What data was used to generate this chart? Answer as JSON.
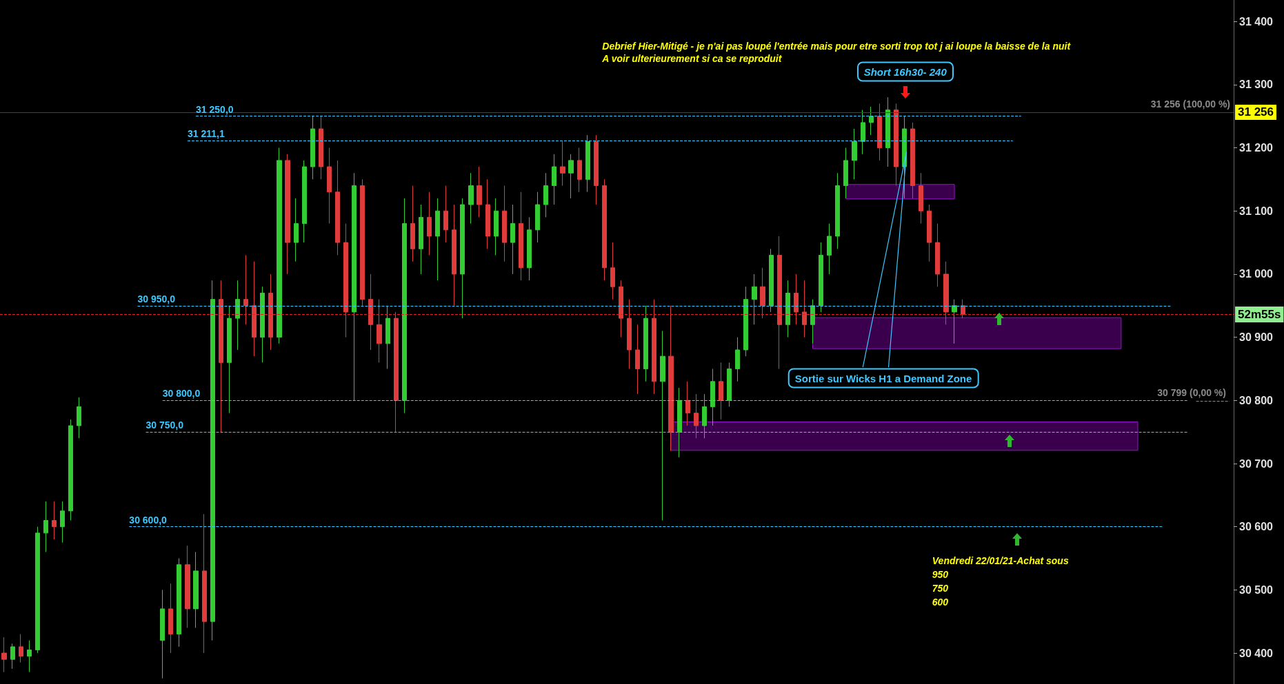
{
  "chart_data": {
    "type": "candlestick",
    "categories": [
      null,
      null,
      null,
      null,
      null,
      null,
      null,
      null,
      null,
      null,
      null,
      null,
      null,
      null,
      null,
      null,
      null,
      null,
      null,
      null,
      null,
      null,
      null,
      null,
      null,
      null,
      null,
      null,
      null,
      null,
      null,
      null,
      null,
      null,
      null,
      null,
      null,
      null,
      null,
      null,
      null,
      null,
      null,
      null,
      null,
      null,
      null,
      null,
      null,
      null,
      null,
      null,
      null,
      null,
      null,
      null,
      null,
      null,
      null,
      null,
      null,
      null,
      null,
      null,
      null,
      null,
      null,
      null,
      null,
      null,
      null,
      null,
      null,
      null,
      null,
      null,
      null,
      null,
      null,
      null,
      null,
      null,
      null,
      null,
      null,
      null,
      null,
      null,
      null,
      null,
      null,
      null,
      null,
      null,
      null,
      null,
      null,
      null,
      null,
      null,
      null,
      null,
      null,
      null,
      null,
      null,
      null,
      null,
      null,
      null,
      null,
      null,
      null,
      null,
      null,
      null,
      null,
      null,
      null,
      null,
      null,
      null,
      null,
      null,
      null,
      null,
      null,
      null,
      null,
      null,
      null,
      null,
      null,
      null,
      null,
      null,
      null,
      null,
      null,
      null,
      null,
      null,
      null,
      null,
      null,
      null,
      null,
      null
    ],
    "ohlc": [
      [
        30400,
        30425,
        30370,
        30390
      ],
      [
        30390,
        30415,
        30375,
        30410
      ],
      [
        30410,
        30430,
        30385,
        30395
      ],
      [
        30395,
        30420,
        30370,
        30405
      ],
      [
        30405,
        30600,
        30400,
        30590
      ],
      [
        30590,
        30640,
        30560,
        30610
      ],
      [
        30610,
        30640,
        30580,
        30600
      ],
      [
        30600,
        30640,
        30575,
        30625
      ],
      [
        30625,
        30770,
        30610,
        30760
      ],
      [
        30760,
        30805,
        30740,
        30790
      ],
      null,
      null,
      null,
      null,
      null,
      null,
      null,
      null,
      null,
      [
        30420,
        30500,
        30360,
        30470
      ],
      [
        30470,
        30510,
        30400,
        30430
      ],
      [
        30430,
        30550,
        30410,
        30540
      ],
      [
        30540,
        30570,
        30440,
        30470
      ],
      [
        30470,
        30560,
        30440,
        30530
      ],
      [
        30530,
        30620,
        30400,
        30450
      ],
      [
        30450,
        30990,
        30420,
        30960
      ],
      [
        30960,
        30990,
        30750,
        30860
      ],
      [
        30860,
        30950,
        30780,
        30930
      ],
      [
        30930,
        30990,
        30880,
        30960
      ],
      [
        30960,
        31030,
        30920,
        30950
      ],
      [
        30950,
        31020,
        30870,
        30900
      ],
      [
        30900,
        30980,
        30860,
        30970
      ],
      [
        30970,
        31000,
        30880,
        30900
      ],
      [
        30900,
        31200,
        30890,
        31180
      ],
      [
        31180,
        31190,
        31000,
        31050
      ],
      [
        31050,
        31120,
        31020,
        31080
      ],
      [
        31080,
        31180,
        31050,
        31170
      ],
      [
        31170,
        31250,
        31150,
        31230
      ],
      [
        31230,
        31250,
        31150,
        31170
      ],
      [
        31170,
        31200,
        31080,
        31130
      ],
      [
        31130,
        31180,
        31030,
        31050
      ],
      [
        31050,
        31080,
        30900,
        30940
      ],
      [
        30940,
        31160,
        30800,
        31140
      ],
      [
        31140,
        31150,
        30950,
        30960
      ],
      [
        30960,
        31000,
        30880,
        30920
      ],
      [
        30920,
        30960,
        30860,
        30890
      ],
      [
        30890,
        30950,
        30850,
        30930
      ],
      [
        30930,
        30940,
        30750,
        30800
      ],
      [
        30800,
        31120,
        30780,
        31080
      ],
      [
        31080,
        31140,
        31020,
        31040
      ],
      [
        31040,
        31110,
        31000,
        31090
      ],
      [
        31090,
        31130,
        31030,
        31060
      ],
      [
        31060,
        31120,
        30990,
        31100
      ],
      [
        31100,
        31140,
        31050,
        31070
      ],
      [
        31070,
        31110,
        30950,
        31000
      ],
      [
        31000,
        31120,
        30930,
        31110
      ],
      [
        31110,
        31160,
        31080,
        31140
      ],
      [
        31140,
        31170,
        31090,
        31110
      ],
      [
        31110,
        31150,
        31040,
        31060
      ],
      [
        31060,
        31120,
        31030,
        31100
      ],
      [
        31100,
        31140,
        31020,
        31050
      ],
      [
        31050,
        31110,
        31000,
        31080
      ],
      [
        31080,
        31130,
        30990,
        31010
      ],
      [
        31010,
        31090,
        30990,
        31070
      ],
      [
        31070,
        31130,
        31050,
        31110
      ],
      [
        31110,
        31160,
        31090,
        31140
      ],
      [
        31140,
        31190,
        31110,
        31170
      ],
      [
        31170,
        31210,
        31140,
        31160
      ],
      [
        31160,
        31190,
        31120,
        31180
      ],
      [
        31180,
        31200,
        31130,
        31150
      ],
      [
        31150,
        31220,
        31130,
        31210
      ],
      [
        31210,
        31220,
        31110,
        31140
      ],
      [
        31140,
        31150,
        30990,
        31010
      ],
      [
        31010,
        31050,
        30960,
        30980
      ],
      [
        30980,
        30990,
        30900,
        30930
      ],
      [
        30930,
        30960,
        30850,
        30880
      ],
      [
        30880,
        30920,
        30810,
        30850
      ],
      [
        30850,
        30950,
        30830,
        30930
      ],
      [
        30930,
        30960,
        30810,
        30830
      ],
      [
        30830,
        30910,
        30610,
        30870
      ],
      [
        30870,
        30950,
        30720,
        30750
      ],
      [
        30750,
        30820,
        30710,
        30800
      ],
      [
        30800,
        30830,
        30760,
        30780
      ],
      [
        30780,
        30810,
        30740,
        30760
      ],
      [
        30760,
        30810,
        30740,
        30790
      ],
      [
        30790,
        30850,
        30760,
        30830
      ],
      [
        30830,
        30860,
        30770,
        30800
      ],
      [
        30800,
        30860,
        30790,
        30850
      ],
      [
        30850,
        30900,
        30830,
        30880
      ],
      [
        30880,
        30980,
        30870,
        30960
      ],
      [
        30960,
        31000,
        30920,
        30980
      ],
      [
        30980,
        31010,
        30930,
        30950
      ],
      [
        30950,
        31040,
        30940,
        31030
      ],
      [
        31030,
        31060,
        30850,
        30920
      ],
      [
        30920,
        30990,
        30900,
        30970
      ],
      [
        30970,
        31000,
        30920,
        30940
      ],
      [
        30940,
        30990,
        30900,
        30920
      ],
      [
        30920,
        30960,
        30890,
        30950
      ],
      [
        30950,
        31050,
        30940,
        31030
      ],
      [
        31030,
        31080,
        31000,
        31060
      ],
      [
        31060,
        31160,
        31040,
        31140
      ],
      [
        31140,
        31200,
        31120,
        31180
      ],
      [
        31180,
        31230,
        31150,
        31210
      ],
      [
        31210,
        31260,
        31190,
        31240
      ],
      [
        31240,
        31265,
        31220,
        31250
      ],
      [
        31250,
        31270,
        31180,
        31200
      ],
      [
        31200,
        31280,
        31170,
        31260
      ],
      [
        31260,
        31270,
        31140,
        31170
      ],
      [
        31170,
        31250,
        31120,
        31230
      ],
      [
        31230,
        31240,
        31120,
        31140
      ],
      [
        31140,
        31160,
        31080,
        31100
      ],
      [
        31100,
        31110,
        31020,
        31050
      ],
      [
        31050,
        31080,
        30980,
        31000
      ],
      [
        31000,
        31020,
        30920,
        30940
      ],
      [
        30940,
        30960,
        30890,
        30950
      ],
      [
        30950,
        30960,
        30930,
        30936
      ],
      null,
      null,
      null,
      null,
      null,
      null,
      null,
      null,
      null,
      null,
      null,
      null,
      null,
      null,
      null,
      null,
      null,
      null,
      null,
      null,
      null,
      null,
      null,
      null,
      null,
      null,
      null,
      null,
      null,
      null,
      null,
      null
    ],
    "ylim": [
      30351,
      31434
    ],
    "yticks": [
      {
        "value": 30400,
        "label": "30 400"
      },
      {
        "value": 30500,
        "label": "30 500"
      },
      {
        "value": 30600,
        "label": "30 600"
      },
      {
        "value": 30700,
        "label": "30 700"
      },
      {
        "value": 30800,
        "label": "30 800"
      },
      {
        "value": 30900,
        "label": "30 900"
      },
      {
        "value": 31000,
        "label": "31 000"
      },
      {
        "value": 31100,
        "label": "31 100"
      },
      {
        "value": 31200,
        "label": "31 200"
      },
      {
        "value": 31300,
        "label": "31 300"
      },
      {
        "value": 31400,
        "label": "31 400"
      }
    ],
    "tick_labels": "y",
    "ref_lines": [
      {
        "axis": "y",
        "value": 31250,
        "label": "31 250,0",
        "color": "#3ec8ff",
        "line_style": "dashed"
      },
      {
        "axis": "y",
        "value": 31211.1,
        "label": "31 211,1",
        "color": "#3ec8ff",
        "line_style": "dashed"
      },
      {
        "axis": "y",
        "value": 30950,
        "label": "30 950,0",
        "color": "#3ec8ff",
        "line_style": "dashed"
      },
      {
        "axis": "y",
        "value": 30800,
        "label": "30 800,0",
        "color": "#3ec8ff",
        "line_style": "dashed"
      },
      {
        "axis": "y",
        "value": 30750,
        "label": "30 750,0",
        "color": "#3ec8ff",
        "line_style": "dashed"
      },
      {
        "axis": "y",
        "value": 30600,
        "label": "30 600,0",
        "color": "#3ec8ff",
        "line_style": "dashed"
      },
      {
        "axis": "y",
        "value": 31256,
        "label": "31 256 (100,00 %)",
        "color": "#7a1a8a",
        "line_style": "solid"
      },
      {
        "axis": "y",
        "value": 30799,
        "label": "30 799 (0,00 %)",
        "color": "#8a8a8a",
        "line_style": "dashed"
      },
      {
        "axis": "y",
        "value": 30936,
        "label": "52m55s",
        "color": "#e02020",
        "line_style": "dashed"
      }
    ],
    "bands": [
      {
        "axis": "y",
        "from": 31119,
        "to": 31142,
        "color": "#3a004e"
      },
      {
        "axis": "y",
        "from": 30882,
        "to": 30931,
        "color": "#3a004e"
      },
      {
        "axis": "y",
        "from": 30721,
        "to": 30766,
        "color": "#3a004e"
      }
    ],
    "annotations": [
      "Debrief Hier-Mitigé - je n'ai pas loupé l'entrée mais pour etre sorti trop tot j ai loupe la baisse de la nuit",
      "A voir ulterieurement si ca se reproduit",
      "Short 16h30- 240",
      "Sortie sur Wicks H1 a Demand Zone",
      "Vendredi 22/01/21-Achat sous",
      "950",
      "750",
      "600",
      "31 256"
    ]
  }
}
